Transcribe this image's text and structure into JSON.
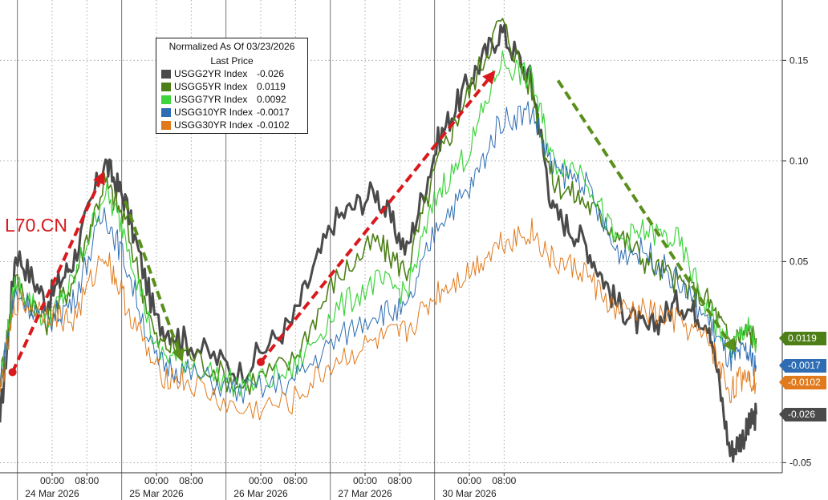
{
  "chart_data": {
    "type": "line",
    "legend": {
      "title": "Normalized As Of 03/23/2026",
      "subtitle": "Last Price",
      "placement": "top-left"
    },
    "series": [
      {
        "name": "USGG2YR Index",
        "last": "-0.026",
        "color": "#4a4a4a",
        "values": [
          [
            0,
            -0.03
          ],
          [
            0.15,
            0.055
          ],
          [
            0.45,
            0.03
          ],
          [
            0.7,
            0.05
          ],
          [
            1.0,
            0.1
          ],
          [
            1.2,
            0.08
          ],
          [
            1.5,
            0.02
          ],
          [
            1.8,
            0.01
          ],
          [
            2.3,
            -0.005
          ],
          [
            2.8,
            0.02
          ],
          [
            3.2,
            0.07
          ],
          [
            3.6,
            0.085
          ],
          [
            3.9,
            0.055
          ],
          [
            4.2,
            0.11
          ],
          [
            4.5,
            0.14
          ],
          [
            4.8,
            0.165
          ],
          [
            5.1,
            0.14
          ],
          [
            5.3,
            0.075
          ],
          [
            5.6,
            0.06
          ],
          [
            5.9,
            0.03
          ],
          [
            6.2,
            0.015
          ],
          [
            6.5,
            0.03
          ],
          [
            6.8,
            0.02
          ],
          [
            7.0,
            -0.045
          ],
          [
            7.15,
            -0.035
          ],
          [
            7.25,
            -0.026
          ]
        ]
      },
      {
        "name": "USGG5YR Index",
        "last": "0.0119",
        "color": "#4d7f16",
        "values": [
          [
            0,
            -0.01
          ],
          [
            0.15,
            0.04
          ],
          [
            0.45,
            0.02
          ],
          [
            0.7,
            0.04
          ],
          [
            1.0,
            0.09
          ],
          [
            1.2,
            0.07
          ],
          [
            1.5,
            0.01
          ],
          [
            1.8,
            0.005
          ],
          [
            2.3,
            -0.012
          ],
          [
            2.8,
            0.0
          ],
          [
            3.2,
            0.04
          ],
          [
            3.6,
            0.06
          ],
          [
            3.9,
            0.045
          ],
          [
            4.2,
            0.1
          ],
          [
            4.5,
            0.135
          ],
          [
            4.8,
            0.17
          ],
          [
            5.1,
            0.135
          ],
          [
            5.3,
            0.09
          ],
          [
            5.6,
            0.08
          ],
          [
            5.9,
            0.065
          ],
          [
            6.2,
            0.05
          ],
          [
            6.5,
            0.04
          ],
          [
            6.8,
            0.03
          ],
          [
            7.0,
            0.01
          ],
          [
            7.15,
            0.015
          ],
          [
            7.25,
            0.0119
          ]
        ]
      },
      {
        "name": "USGG7YR Index",
        "last": "0.0092",
        "color": "#3ed43e",
        "values": [
          [
            0,
            -0.01
          ],
          [
            0.15,
            0.04
          ],
          [
            0.45,
            0.02
          ],
          [
            0.7,
            0.04
          ],
          [
            1.0,
            0.085
          ],
          [
            1.2,
            0.065
          ],
          [
            1.5,
            0.005
          ],
          [
            1.8,
            0.0
          ],
          [
            2.3,
            -0.012
          ],
          [
            2.8,
            -0.005
          ],
          [
            3.2,
            0.025
          ],
          [
            3.6,
            0.04
          ],
          [
            3.9,
            0.035
          ],
          [
            4.2,
            0.085
          ],
          [
            4.5,
            0.105
          ],
          [
            4.8,
            0.15
          ],
          [
            5.1,
            0.14
          ],
          [
            5.3,
            0.1
          ],
          [
            5.6,
            0.095
          ],
          [
            5.9,
            0.06
          ],
          [
            6.2,
            0.065
          ],
          [
            6.5,
            0.06
          ],
          [
            6.8,
            0.025
          ],
          [
            7.0,
            0.005
          ],
          [
            7.15,
            0.018
          ],
          [
            7.25,
            0.0092
          ]
        ]
      },
      {
        "name": "USGG10YR Index",
        "last": "-0.0017",
        "color": "#2e6db3",
        "values": [
          [
            0,
            -0.01
          ],
          [
            0.15,
            0.035
          ],
          [
            0.45,
            0.02
          ],
          [
            0.7,
            0.03
          ],
          [
            1.0,
            0.075
          ],
          [
            1.2,
            0.05
          ],
          [
            1.5,
            0.0
          ],
          [
            1.8,
            -0.005
          ],
          [
            2.3,
            -0.015
          ],
          [
            2.8,
            -0.01
          ],
          [
            3.2,
            0.01
          ],
          [
            3.6,
            0.025
          ],
          [
            3.9,
            0.025
          ],
          [
            4.2,
            0.07
          ],
          [
            4.5,
            0.085
          ],
          [
            4.8,
            0.12
          ],
          [
            5.1,
            0.125
          ],
          [
            5.3,
            0.095
          ],
          [
            5.6,
            0.09
          ],
          [
            5.9,
            0.055
          ],
          [
            6.2,
            0.055
          ],
          [
            6.5,
            0.04
          ],
          [
            6.8,
            0.02
          ],
          [
            7.0,
            0.0
          ],
          [
            7.15,
            0.005
          ],
          [
            7.25,
            -0.0017
          ]
        ]
      },
      {
        "name": "USGG30YR Index",
        "last": "-0.0102",
        "color": "#e07a1c",
        "values": [
          [
            0,
            -0.015
          ],
          [
            0.15,
            0.03
          ],
          [
            0.45,
            0.025
          ],
          [
            0.7,
            0.02
          ],
          [
            1.0,
            0.055
          ],
          [
            1.2,
            0.03
          ],
          [
            1.5,
            -0.005
          ],
          [
            1.8,
            -0.01
          ],
          [
            2.3,
            -0.025
          ],
          [
            2.8,
            -0.02
          ],
          [
            3.2,
            0.0
          ],
          [
            3.6,
            0.01
          ],
          [
            3.9,
            0.015
          ],
          [
            4.2,
            0.035
          ],
          [
            4.5,
            0.045
          ],
          [
            4.8,
            0.06
          ],
          [
            5.1,
            0.065
          ],
          [
            5.3,
            0.05
          ],
          [
            5.6,
            0.045
          ],
          [
            5.9,
            0.025
          ],
          [
            6.2,
            0.025
          ],
          [
            6.5,
            0.02
          ],
          [
            6.8,
            0.01
          ],
          [
            7.0,
            -0.015
          ],
          [
            7.15,
            -0.005
          ],
          [
            7.25,
            -0.0102
          ]
        ]
      }
    ],
    "xlim": [
      0,
      7.5
    ],
    "ylim": [
      -0.055,
      0.18
    ],
    "yticks": [
      {
        "value": 0.15,
        "label": "0.15"
      },
      {
        "value": 0.1,
        "label": "0.10"
      },
      {
        "value": 0.05,
        "label": "0.05"
      },
      {
        "value": -0.05,
        "label": "-0.05"
      }
    ],
    "xticks": [
      {
        "x": 0.5,
        "label": "00:00"
      },
      {
        "x": 0.833,
        "label": "08:00"
      },
      {
        "x": 1.5,
        "label": "00:00"
      },
      {
        "x": 1.833,
        "label": "08:00"
      },
      {
        "x": 2.5,
        "label": "00:00"
      },
      {
        "x": 2.833,
        "label": "08:00"
      },
      {
        "x": 3.5,
        "label": "00:00"
      },
      {
        "x": 3.833,
        "label": "08:00"
      },
      {
        "x": 4.5,
        "label": "00:00"
      },
      {
        "x": 4.833,
        "label": "08:00"
      }
    ],
    "day_labels": [
      {
        "x": 0.5,
        "label": "24 Mar 2026"
      },
      {
        "x": 1.5,
        "label": "25 Mar 2026"
      },
      {
        "x": 2.5,
        "label": "26 Mar 2026"
      },
      {
        "x": 3.5,
        "label": "27 Mar 2026"
      },
      {
        "x": 4.5,
        "label": "30 Mar 2026"
      }
    ],
    "day_separators": [
      0.167,
      1.167,
      2.167,
      3.167,
      4.167
    ],
    "annotations": {
      "watermark": "L70.CN",
      "up_arrows": [
        {
          "from": [
            0.12,
            -0.005
          ],
          "to": [
            1.0,
            0.095
          ]
        },
        {
          "from": [
            2.5,
            0.0
          ],
          "to": [
            4.75,
            0.145
          ]
        }
      ],
      "down_arrows": [
        {
          "from": [
            1.2,
            0.08
          ],
          "to": [
            1.75,
            0.0
          ]
        },
        {
          "from": [
            5.35,
            0.14
          ],
          "to": [
            7.05,
            0.005
          ]
        }
      ],
      "up_arrow_color": "#d9191c",
      "down_arrow_color": "#5a8f1c"
    },
    "end_labels": [
      {
        "text": "0.0119",
        "value": 0.0119,
        "color": "#4d7f16"
      },
      {
        "text": "-0.0017",
        "value": -0.0017,
        "color": "#2e6db3"
      },
      {
        "text": "-0.0102",
        "value": -0.0102,
        "color": "#e07a1c"
      },
      {
        "text": "-0.026",
        "value": -0.026,
        "color": "#4a4a4a"
      }
    ]
  }
}
